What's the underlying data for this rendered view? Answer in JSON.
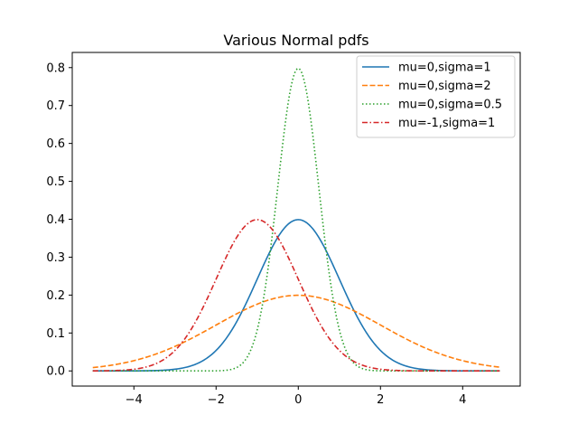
{
  "chart_data": {
    "type": "line",
    "title": "Various Normal pdfs",
    "xlabel": "",
    "ylabel": "",
    "xlim": [
      -5.5,
      5.4
    ],
    "ylim": [
      -0.04,
      0.84
    ],
    "x_ticks": [
      -4,
      -2,
      0,
      2,
      4
    ],
    "x_tick_labels": [
      "−4",
      "−2",
      "0",
      "2",
      "4"
    ],
    "y_ticks": [
      0.0,
      0.1,
      0.2,
      0.3,
      0.4,
      0.5,
      0.6,
      0.7,
      0.8
    ],
    "y_tick_labels": [
      "0.0",
      "0.1",
      "0.2",
      "0.3",
      "0.4",
      "0.5",
      "0.6",
      "0.7",
      "0.8"
    ],
    "grid": false,
    "legend_position": "top-right",
    "x_range": [
      -5,
      4.9
    ],
    "series": [
      {
        "name": "mu=0,sigma=1",
        "mu": 0,
        "sigma": 1,
        "color": "#1f77b4",
        "style": "solid"
      },
      {
        "name": "mu=0,sigma=2",
        "mu": 0,
        "sigma": 2,
        "color": "#ff7f0e",
        "style": "dashed"
      },
      {
        "name": "mu=0,sigma=0.5",
        "mu": 0,
        "sigma": 0.5,
        "color": "#2ca02c",
        "style": "dotted"
      },
      {
        "name": "mu=-1,sigma=1",
        "mu": -1,
        "sigma": 1,
        "color": "#d62728",
        "style": "dashdot"
      }
    ]
  }
}
